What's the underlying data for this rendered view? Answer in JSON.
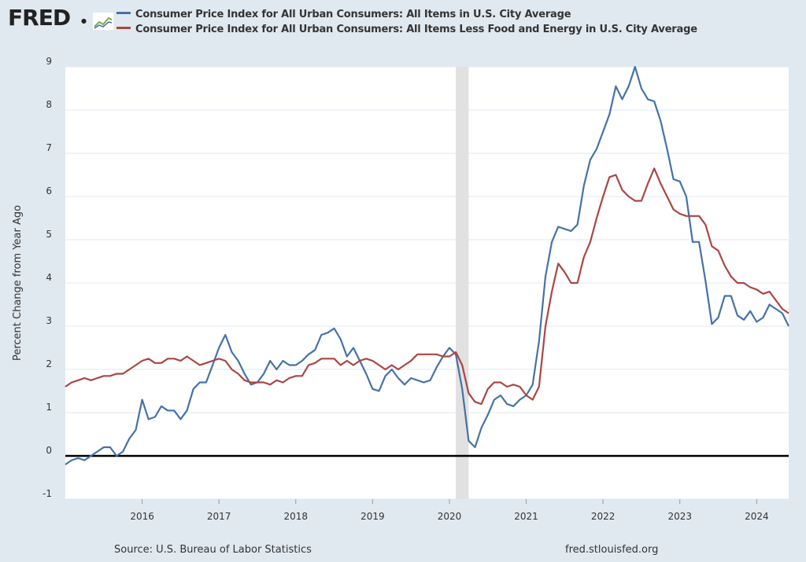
{
  "brand": {
    "logo_text": "FRED",
    "logo_icon": "line-chart-icon"
  },
  "legend": [
    {
      "label": "Consumer Price Index for All Urban Consumers: All Items in U.S. City Average",
      "color": "#4572a7"
    },
    {
      "label": "Consumer Price Index for All Urban Consumers: All Items Less Food and Energy in U.S. City Average",
      "color": "#aa4643"
    }
  ],
  "footer": {
    "source": "Source: U.S. Bureau of Labor Statistics",
    "url": "fred.stlouisfed.org"
  },
  "colors": {
    "background": "#e1e9f0",
    "plot_background": "#ffffff",
    "grid": "#e1e9f0",
    "recession_shading": "#e1e1e1",
    "zero_line": "#000000"
  },
  "chart_data": {
    "type": "line",
    "ylabel": "Percent Change from Year Ago",
    "xlabel": "",
    "ylim": [
      -1,
      9
    ],
    "yticks": [
      -1,
      0,
      1,
      2,
      3,
      4,
      5,
      6,
      7,
      8,
      9
    ],
    "xlim": [
      "2015-01",
      "2024-06"
    ],
    "xticks": [
      "2016",
      "2017",
      "2018",
      "2019",
      "2020",
      "2021",
      "2022",
      "2023",
      "2024"
    ],
    "grid": true,
    "recessions": [
      {
        "start": "2020-02",
        "end": "2020-04"
      }
    ],
    "zero_line": true,
    "x_start": "2015-01",
    "frequency": "monthly",
    "series": [
      {
        "name": "Consumer Price Index for All Urban Consumers: All Items in U.S. City Average",
        "color": "#4572a7",
        "values": [
          -0.2,
          -0.1,
          -0.05,
          -0.1,
          0.0,
          0.1,
          0.2,
          0.2,
          0.0,
          0.1,
          0.4,
          0.6,
          1.3,
          0.85,
          0.9,
          1.15,
          1.05,
          1.05,
          0.85,
          1.05,
          1.55,
          1.7,
          1.7,
          2.1,
          2.5,
          2.8,
          2.4,
          2.2,
          1.9,
          1.65,
          1.7,
          1.9,
          2.2,
          2.0,
          2.2,
          2.1,
          2.1,
          2.2,
          2.35,
          2.45,
          2.8,
          2.85,
          2.95,
          2.7,
          2.3,
          2.5,
          2.2,
          1.9,
          1.55,
          1.5,
          1.85,
          2.0,
          1.8,
          1.65,
          1.8,
          1.75,
          1.7,
          1.75,
          2.05,
          2.3,
          2.5,
          2.35,
          1.55,
          0.35,
          0.2,
          0.65,
          0.95,
          1.3,
          1.4,
          1.2,
          1.15,
          1.3,
          1.4,
          1.65,
          2.65,
          4.15,
          4.95,
          5.3,
          5.25,
          5.2,
          5.35,
          6.25,
          6.85,
          7.1,
          7.5,
          7.9,
          8.55,
          8.25,
          8.55,
          9.0,
          8.5,
          8.25,
          8.2,
          7.75,
          7.1,
          6.4,
          6.35,
          6.0,
          4.95,
          4.95,
          4.05,
          3.05,
          3.2,
          3.7,
          3.7,
          3.25,
          3.15,
          3.35,
          3.1,
          3.2,
          3.5,
          3.4,
          3.3,
          3.0
        ]
      },
      {
        "name": "Consumer Price Index for All Urban Consumers: All Items Less Food and Energy in U.S. City Average",
        "color": "#aa4643",
        "values": [
          1.6,
          1.7,
          1.75,
          1.8,
          1.75,
          1.8,
          1.85,
          1.85,
          1.9,
          1.9,
          2.0,
          2.1,
          2.2,
          2.25,
          2.15,
          2.15,
          2.25,
          2.25,
          2.2,
          2.3,
          2.2,
          2.1,
          2.15,
          2.2,
          2.25,
          2.2,
          2.0,
          1.9,
          1.75,
          1.7,
          1.7,
          1.7,
          1.65,
          1.75,
          1.7,
          1.8,
          1.85,
          1.85,
          2.1,
          2.15,
          2.25,
          2.25,
          2.25,
          2.1,
          2.2,
          2.1,
          2.2,
          2.25,
          2.2,
          2.1,
          2.0,
          2.1,
          2.0,
          2.1,
          2.2,
          2.35,
          2.35,
          2.35,
          2.35,
          2.3,
          2.3,
          2.4,
          2.1,
          1.45,
          1.25,
          1.2,
          1.55,
          1.7,
          1.7,
          1.6,
          1.65,
          1.6,
          1.4,
          1.3,
          1.6,
          3.0,
          3.8,
          4.45,
          4.25,
          4.0,
          4.0,
          4.6,
          4.95,
          5.5,
          6.0,
          6.45,
          6.5,
          6.15,
          6.0,
          5.9,
          5.9,
          6.3,
          6.65,
          6.3,
          6.0,
          5.7,
          5.6,
          5.55,
          5.55,
          5.55,
          5.35,
          4.85,
          4.75,
          4.4,
          4.15,
          4.0,
          4.0,
          3.9,
          3.85,
          3.75,
          3.8,
          3.6,
          3.4,
          3.3
        ]
      }
    ]
  }
}
